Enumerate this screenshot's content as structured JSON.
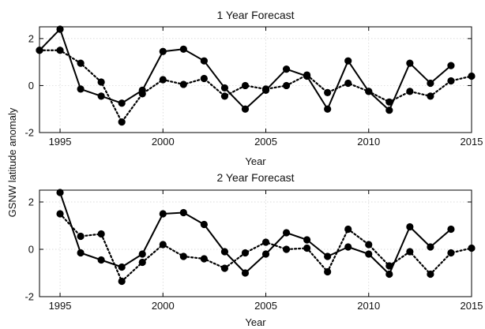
{
  "ylabel_shared": "GSNW latitude anomaly",
  "chart_data": [
    {
      "type": "line",
      "title": "1 Year Forecast",
      "xlabel": "Year",
      "ylabel": "GSNW latitude anomaly",
      "xlim": [
        1994,
        2015
      ],
      "ylim": [
        -2,
        2.5
      ],
      "xticks": [
        1995,
        2000,
        2005,
        2010,
        2015
      ],
      "yticks": [
        -2,
        0,
        2
      ],
      "grid": true,
      "series": [
        {
          "style": "solid",
          "x": [
            1994,
            1995,
            1996,
            1997,
            1998,
            1999,
            2000,
            2001,
            2002,
            2003,
            2004,
            2005,
            2006,
            2007,
            2008,
            2009,
            2010,
            2011,
            2012,
            2013,
            2014
          ],
          "y": [
            1.5,
            2.4,
            -0.15,
            -0.45,
            -0.75,
            -0.2,
            1.45,
            1.55,
            1.05,
            -0.1,
            -1.0,
            -0.2,
            0.7,
            0.4,
            -1.0,
            1.05,
            -0.25,
            -1.05,
            0.95,
            0.1,
            0.85
          ]
        },
        {
          "style": "dotted",
          "x": [
            1994,
            1995,
            1996,
            1997,
            1998,
            1999,
            2000,
            2001,
            2002,
            2003,
            2004,
            2005,
            2006,
            2007,
            2008,
            2009,
            2010,
            2011,
            2012,
            2013,
            2014,
            2015
          ],
          "y": [
            1.5,
            1.5,
            0.95,
            0.15,
            -1.55,
            -0.35,
            0.25,
            0.05,
            0.3,
            -0.45,
            0.0,
            -0.15,
            0.0,
            0.45,
            -0.3,
            0.1,
            -0.25,
            -0.7,
            -0.25,
            -0.45,
            0.2,
            0.4
          ]
        }
      ]
    },
    {
      "type": "line",
      "title": "2 Year Forecast",
      "xlabel": "Year",
      "ylabel": "GSNW latitude anomaly",
      "xlim": [
        1994,
        2015
      ],
      "ylim": [
        -2,
        2.5
      ],
      "xticks": [
        1995,
        2000,
        2005,
        2010,
        2015
      ],
      "yticks": [
        -2,
        0,
        2
      ],
      "grid": true,
      "series": [
        {
          "style": "solid",
          "x": [
            1995,
            1996,
            1997,
            1998,
            1999,
            2000,
            2001,
            2002,
            2003,
            2004,
            2005,
            2006,
            2007,
            2008,
            2009,
            2010,
            2011,
            2012,
            2013,
            2014
          ],
          "y": [
            2.4,
            -0.15,
            -0.45,
            -0.75,
            -0.2,
            1.5,
            1.55,
            1.05,
            -0.1,
            -1.0,
            -0.2,
            0.7,
            0.4,
            -0.3,
            0.1,
            -0.2,
            -1.05,
            0.95,
            0.1,
            0.85
          ]
        },
        {
          "style": "dotted",
          "x": [
            1995,
            1996,
            1997,
            1998,
            1999,
            2000,
            2001,
            2002,
            2003,
            2004,
            2005,
            2006,
            2007,
            2008,
            2009,
            2010,
            2011,
            2012,
            2013,
            2014,
            2015
          ],
          "y": [
            1.5,
            0.55,
            0.65,
            -1.35,
            -0.55,
            0.2,
            -0.3,
            -0.4,
            -0.8,
            -0.15,
            0.3,
            0.0,
            0.05,
            -0.95,
            0.85,
            0.2,
            -0.7,
            -0.1,
            -1.05,
            -0.15,
            0.05
          ]
        }
      ]
    }
  ]
}
